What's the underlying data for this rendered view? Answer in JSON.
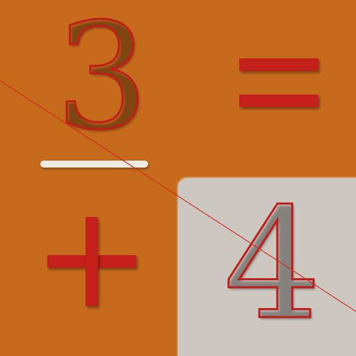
{
  "tile": {
    "digit_top": "3",
    "digit_answer": "4",
    "equals_symbol": "=",
    "plus_symbol": "+",
    "minus_symbol": "−"
  },
  "colors": {
    "background": "#c66a1c",
    "symbol_red": "#c41f1a",
    "answer_box": "#cdc7c1",
    "minus_bar": "#eeeae4",
    "strike_line": "#d22a22"
  }
}
